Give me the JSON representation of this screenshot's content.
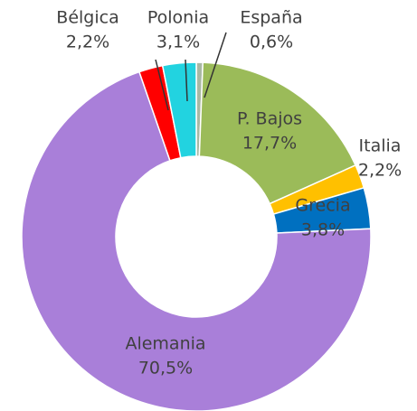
{
  "chart_data": {
    "type": "donut",
    "categories": [
      "España",
      "P. Bajos",
      "Italia",
      "Grecia",
      "Alemania",
      "Bélgica",
      "Polonia"
    ],
    "values": [
      0.6,
      17.7,
      2.2,
      3.8,
      70.5,
      2.2,
      3.1
    ],
    "value_labels": [
      "0,6%",
      "17,7%",
      "2,2%",
      "3,8%",
      "70,5%",
      "2,2%",
      "3,1%"
    ],
    "colors": [
      "#a9b8a3",
      "#9bbb59",
      "#ffc000",
      "#0070c0",
      "#a97fd9",
      "#ff0000",
      "#22d3e0"
    ]
  }
}
